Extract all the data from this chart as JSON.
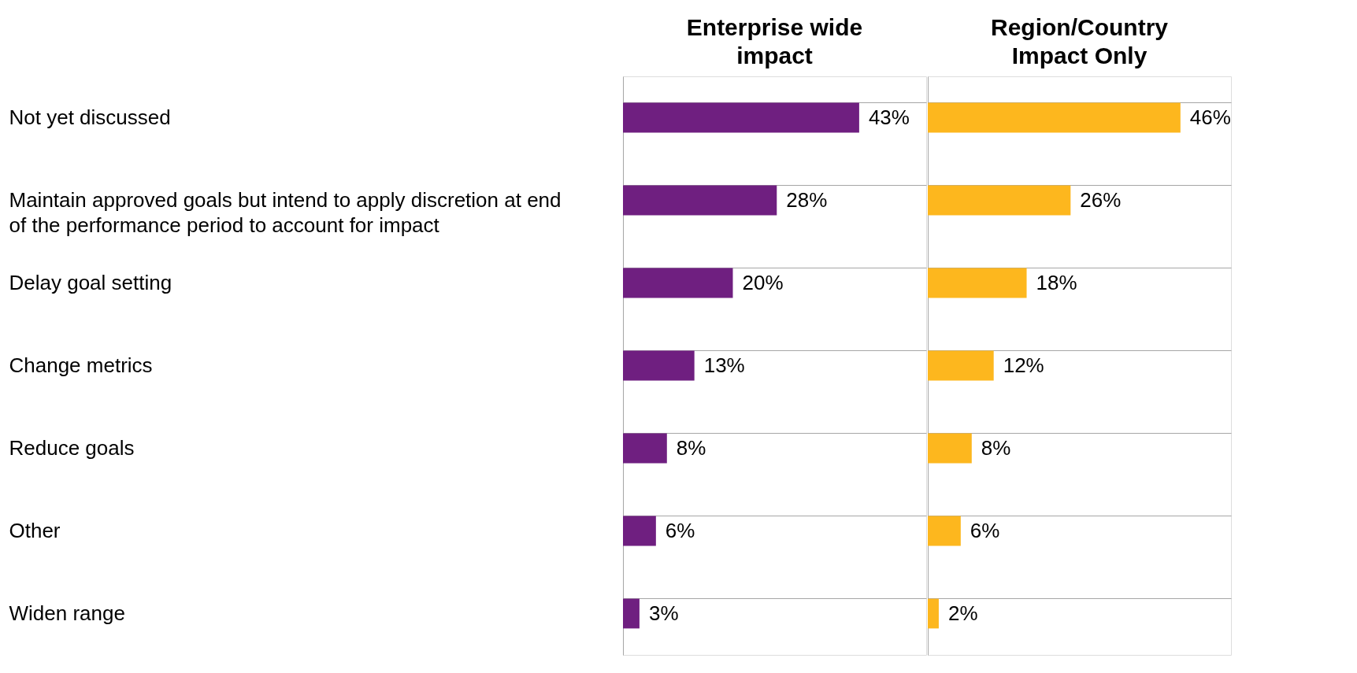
{
  "chart_data": [
    {
      "type": "bar",
      "orientation": "horizontal",
      "title": "Enterprise wide\nimpact",
      "categories": [
        "Not yet discussed",
        "Maintain approved goals but intend to apply discretion at end\nof the performance period to account for impact",
        "Delay goal setting",
        "Change metrics",
        "Reduce goals",
        "Other",
        "Widen range"
      ],
      "series": [
        {
          "color": "#6f1f80",
          "values": [
            43,
            28,
            20,
            13,
            8,
            6,
            3
          ],
          "value_labels": [
            "43%",
            "28%",
            "20%",
            "13%",
            "8%",
            "6%",
            "3%"
          ]
        }
      ],
      "grid": "y",
      "tick_labels": "y"
    },
    {
      "type": "bar",
      "orientation": "horizontal",
      "title": "Region/Country\nImpact Only",
      "categories": [
        "Not yet discussed",
        "Maintain approved goals but intend to apply discretion at end\nof the performance period to account for impact",
        "Delay goal setting",
        "Change metrics",
        "Reduce goals",
        "Other",
        "Widen range"
      ],
      "series": [
        {
          "color": "#fdb71e",
          "values": [
            46,
            26,
            18,
            12,
            8,
            6,
            2
          ],
          "value_labels": [
            "46%",
            "26%",
            "18%",
            "12%",
            "8%",
            "6%",
            "2%"
          ]
        }
      ],
      "grid": "y",
      "tick_labels": false
    }
  ]
}
